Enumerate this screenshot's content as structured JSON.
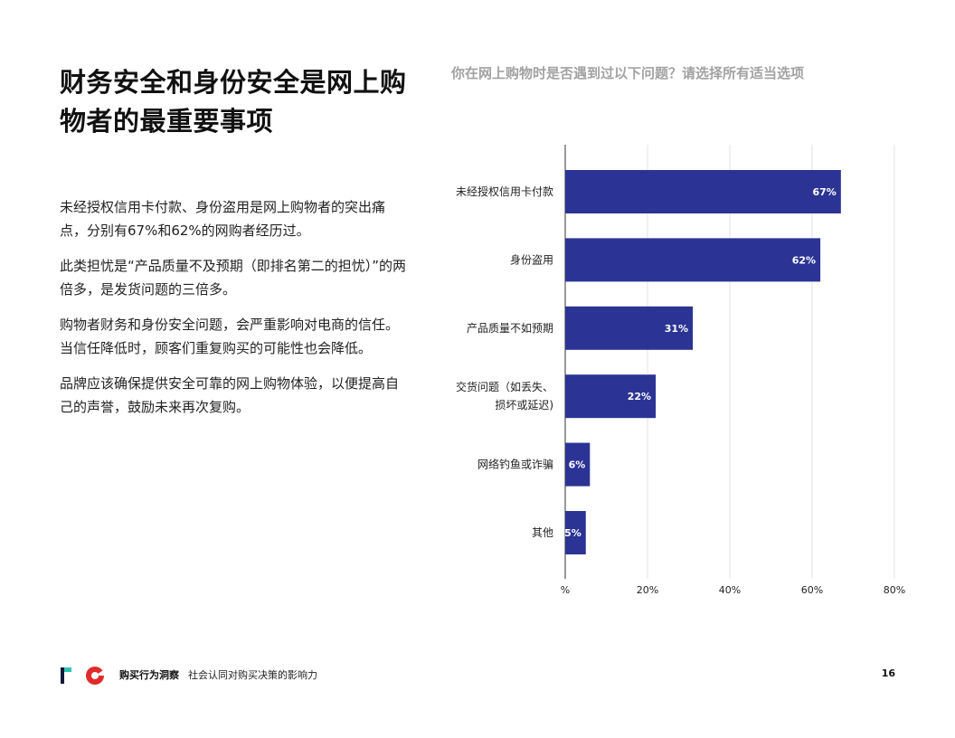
{
  "page": {
    "title": "财务安全和身份安全是网上购物者的最重要事项",
    "paragraphs": [
      "未经授权信用卡付款、身份盗用是网上购物者的突出痛点，分别有67%和62%的网购者经历过。",
      "此类担忧是“产品质量不及预期（即排名第二的担忧）”的两倍多，是发货问题的三倍多。",
      "购物者财务和身份安全问题，会严重影响对电商的信任。当信任降低时，顾客们重复购买的可能性也会降低。",
      "品牌应该确保提供安全可靠的网上购物体验，以便提高自己的声誉，鼓励未来再次复购。"
    ]
  },
  "chart_question": "你在网上购物时是否遇到过以下问题？请选择所有适当选项",
  "chart_data": {
    "type": "bar",
    "orientation": "horizontal",
    "title": "你在网上购物时是否遇到过以下问题？请选择所有适当选项",
    "categories": [
      [
        "未经授权信用卡付款"
      ],
      [
        "身份盗用"
      ],
      [
        "产品质量不如预期"
      ],
      [
        "交货问题（如丢失、",
        "损坏或延迟)"
      ],
      [
        "网络钓鱼或诈骗"
      ],
      [
        "其他"
      ]
    ],
    "values": [
      67,
      62,
      31,
      22,
      6,
      5
    ],
    "value_labels": [
      "67%",
      "62%",
      "31%",
      "22%",
      "6%",
      "5%"
    ],
    "xlim": [
      0,
      80
    ],
    "xticks": [
      0,
      20,
      40,
      60,
      80
    ],
    "xtick_labels": [
      "%",
      "20%",
      "40%",
      "60%",
      "80%"
    ],
    "grid": true,
    "bar_color": "#2b3494",
    "label_color": "#ffffff"
  },
  "footer": {
    "brand": "购买行为洞察",
    "subtitle": "社会认同对购买决策的影响力",
    "page_number": "16",
    "logo_colors": [
      "#2ec4b6",
      "#0f1a3c",
      "#e02b2b"
    ]
  }
}
